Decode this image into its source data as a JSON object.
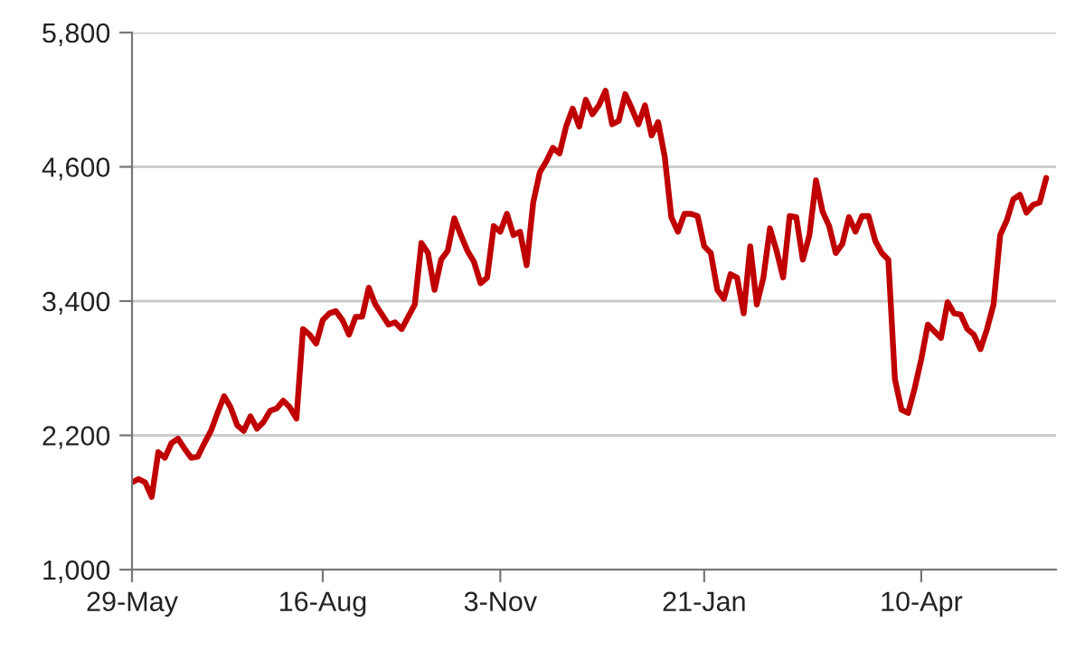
{
  "chart_data": {
    "type": "line",
    "categories": [
      "29-May",
      null,
      null,
      null,
      null,
      null,
      null,
      null,
      null,
      null,
      null,
      null,
      null,
      null,
      null,
      null,
      null,
      null,
      null,
      null,
      null,
      null,
      null,
      null,
      null,
      null,
      null,
      null,
      null,
      "16-Aug",
      null,
      null,
      null,
      null,
      null,
      null,
      null,
      null,
      null,
      null,
      null,
      null,
      null,
      null,
      null,
      null,
      null,
      null,
      null,
      null,
      null,
      null,
      null,
      null,
      null,
      null,
      "3-Nov",
      null,
      null,
      null,
      null,
      null,
      null,
      null,
      null,
      null,
      null,
      null,
      null,
      null,
      null,
      null,
      null,
      null,
      null,
      null,
      null,
      null,
      null,
      null,
      null,
      null,
      null,
      null,
      null,
      null,
      null,
      "21-Jan",
      null,
      null,
      null,
      null,
      null,
      null,
      null,
      null,
      null,
      null,
      null,
      null,
      null,
      null,
      null,
      null,
      null,
      null,
      null,
      null,
      null,
      null,
      null,
      null,
      null,
      null,
      null,
      null,
      null,
      null,
      null,
      null,
      "10-Apr",
      null,
      null,
      null,
      null,
      null,
      null,
      null,
      null,
      null,
      null,
      null,
      null,
      null,
      null,
      null,
      null,
      null,
      null,
      null
    ],
    "series": [
      {
        "color": "#c00000",
        "values": [
          1780,
          1810,
          1780,
          1650,
          2050,
          2000,
          2130,
          2170,
          2080,
          2000,
          2010,
          2130,
          2240,
          2400,
          2550,
          2450,
          2290,
          2240,
          2370,
          2260,
          2320,
          2420,
          2440,
          2510,
          2450,
          2350,
          3150,
          3100,
          3020,
          3230,
          3290,
          3310,
          3230,
          3100,
          3260,
          3260,
          3520,
          3370,
          3280,
          3190,
          3210,
          3150,
          3260,
          3370,
          3920,
          3830,
          3500,
          3770,
          3850,
          4140,
          3990,
          3850,
          3750,
          3560,
          3610,
          4070,
          4020,
          4180,
          3990,
          4020,
          3720,
          4280,
          4550,
          4650,
          4770,
          4720,
          4960,
          5120,
          4960,
          5200,
          5070,
          5150,
          5280,
          4980,
          5010,
          5250,
          5120,
          4980,
          5150,
          4880,
          5000,
          4690,
          4150,
          4020,
          4180,
          4180,
          4160,
          3890,
          3830,
          3500,
          3420,
          3640,
          3610,
          3290,
          3890,
          3370,
          3610,
          4050,
          3850,
          3610,
          4160,
          4150,
          3770,
          3990,
          4480,
          4200,
          4070,
          3830,
          3910,
          4150,
          4020,
          4160,
          4160,
          3940,
          3830,
          3770,
          2700,
          2430,
          2400,
          2620,
          2880,
          3190,
          3130,
          3070,
          3390,
          3290,
          3280,
          3150,
          3100,
          2970,
          3150,
          3370,
          3990,
          4120,
          4310,
          4350,
          4190,
          4260,
          4280,
          4500
        ]
      }
    ],
    "ylim": [
      1000,
      5800
    ],
    "yticks": [
      {
        "value": 1000,
        "label": "1,000"
      },
      {
        "value": 2200,
        "label": "2,200"
      },
      {
        "value": 3400,
        "label": "3,400"
      },
      {
        "value": 4600,
        "label": "4,600"
      },
      {
        "value": 5800,
        "label": "5,800"
      }
    ],
    "grid": "y",
    "marker": "none",
    "line_style": "solid"
  }
}
